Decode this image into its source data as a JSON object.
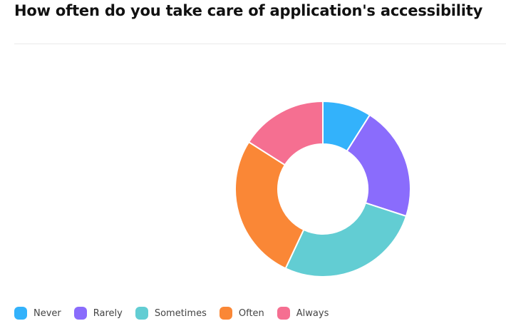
{
  "title": "How often do you take care of application's accessibility",
  "chart_data": {
    "type": "pie",
    "variant": "donut",
    "categories": [
      "Never",
      "Rarely",
      "Sometimes",
      "Often",
      "Always"
    ],
    "values": [
      9,
      21,
      27,
      27,
      16
    ],
    "colors": [
      "#33b2fb",
      "#8a6cfc",
      "#62cdd3",
      "#fa8736",
      "#f56f91"
    ],
    "legend": "bottom-left",
    "start_angle_deg": 0
  }
}
